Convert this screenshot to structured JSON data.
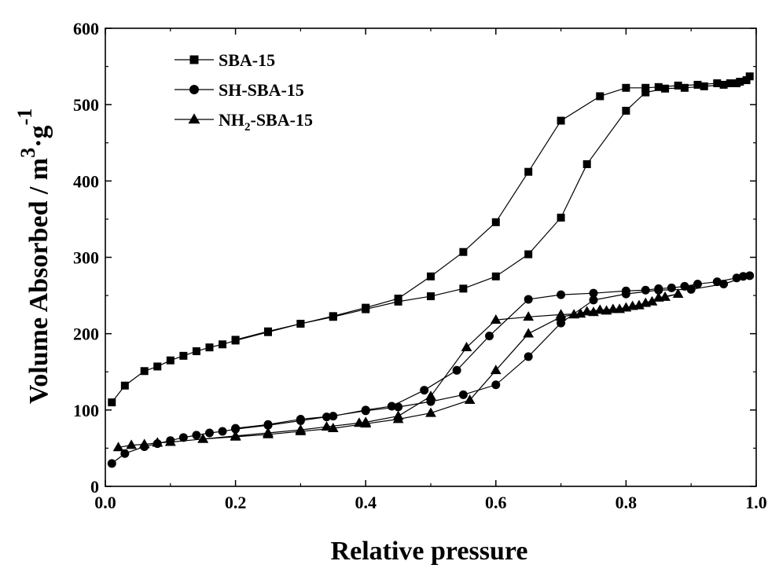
{
  "chart_data": {
    "type": "line",
    "title": "",
    "xlabel": "Relative pressure",
    "ylabel": {
      "base": "Volume Absorbed / m",
      "sup": "3",
      "mid": "·g",
      "sup2": "-1"
    },
    "xlim": [
      0.0,
      1.0
    ],
    "ylim": [
      0,
      600
    ],
    "x_ticks": [
      "0.0",
      "0.2",
      "0.4",
      "0.6",
      "0.8",
      "1.0"
    ],
    "y_ticks": [
      "0",
      "100",
      "200",
      "300",
      "400",
      "500",
      "600"
    ],
    "grid": false,
    "legend_position": "top-left",
    "series": [
      {
        "name": "SBA-15",
        "marker": "square",
        "color": "#000000",
        "x": [
          0.01,
          0.03,
          0.06,
          0.08,
          0.1,
          0.12,
          0.14,
          0.16,
          0.18,
          0.2,
          0.25,
          0.3,
          0.35,
          0.4,
          0.45,
          0.5,
          0.55,
          0.6,
          0.65,
          0.7,
          0.74,
          0.8,
          0.83,
          0.86,
          0.89,
          0.92,
          0.95,
          0.97,
          0.99,
          0.985,
          0.975,
          0.96,
          0.94,
          0.91,
          0.88,
          0.85,
          0.83,
          0.8,
          0.76,
          0.7,
          0.65,
          0.6,
          0.55,
          0.5,
          0.45,
          0.4,
          0.35,
          0.3,
          0.25,
          0.2
        ],
        "y": [
          110,
          132,
          151,
          157,
          165,
          171,
          177,
          182,
          186,
          191,
          202,
          213,
          222,
          232,
          242,
          249,
          259,
          275,
          304,
          352,
          422,
          492,
          516,
          521,
          522,
          524,
          526,
          528,
          537,
          532,
          530,
          528,
          528,
          526,
          525,
          523,
          522,
          522,
          511,
          479,
          412,
          346,
          307,
          275,
          246,
          234,
          223,
          213,
          203,
          192
        ]
      },
      {
        "name": "SH-SBA-15",
        "marker": "circle",
        "color": "#000000",
        "x": [
          0.01,
          0.03,
          0.06,
          0.08,
          0.1,
          0.12,
          0.14,
          0.16,
          0.18,
          0.2,
          0.25,
          0.3,
          0.34,
          0.4,
          0.45,
          0.5,
          0.55,
          0.6,
          0.65,
          0.7,
          0.75,
          0.8,
          0.85,
          0.9,
          0.95,
          0.99,
          0.98,
          0.97,
          0.94,
          0.91,
          0.89,
          0.87,
          0.85,
          0.83,
          0.8,
          0.75,
          0.7,
          0.65,
          0.59,
          0.54,
          0.49,
          0.44,
          0.4,
          0.35,
          0.3,
          0.25,
          0.2
        ],
        "y": [
          30,
          43,
          52,
          56,
          60,
          64,
          67,
          70,
          72,
          75,
          80,
          86,
          91,
          99,
          104,
          111,
          120,
          133,
          170,
          214,
          244,
          252,
          257,
          258,
          265,
          276,
          275,
          273,
          268,
          265,
          262,
          260,
          259,
          257,
          256,
          253,
          251,
          245,
          197,
          152,
          126,
          105,
          100,
          92,
          88,
          81,
          76
        ]
      },
      {
        "name": "NH2-SBA-15",
        "name_parts": [
          "NH",
          "2",
          "-SBA-15"
        ],
        "marker": "triangle",
        "color": "#000000",
        "x": [
          0.02,
          0.04,
          0.06,
          0.08,
          0.1,
          0.15,
          0.2,
          0.25,
          0.3,
          0.35,
          0.4,
          0.45,
          0.5,
          0.56,
          0.6,
          0.65,
          0.7,
          0.72,
          0.74,
          0.76,
          0.78,
          0.8,
          0.82,
          0.84,
          0.86,
          0.88,
          0.85,
          0.83,
          0.81,
          0.79,
          0.77,
          0.75,
          0.73,
          0.7,
          0.65,
          0.6,
          0.555,
          0.5,
          0.45,
          0.4,
          0.39,
          0.34,
          0.3,
          0.25,
          0.2,
          0.15,
          0.1,
          0.08
        ],
        "y": [
          51,
          54,
          55,
          57,
          58,
          62,
          65,
          68,
          72,
          76,
          82,
          88,
          96,
          113,
          152,
          200,
          222,
          225,
          229,
          231,
          232,
          234,
          237,
          242,
          248,
          252,
          247,
          240,
          236,
          232,
          230,
          228,
          226,
          225,
          222,
          218,
          182,
          118,
          92,
          84,
          83,
          78,
          74,
          70,
          66,
          62,
          58,
          57
        ]
      }
    ]
  }
}
